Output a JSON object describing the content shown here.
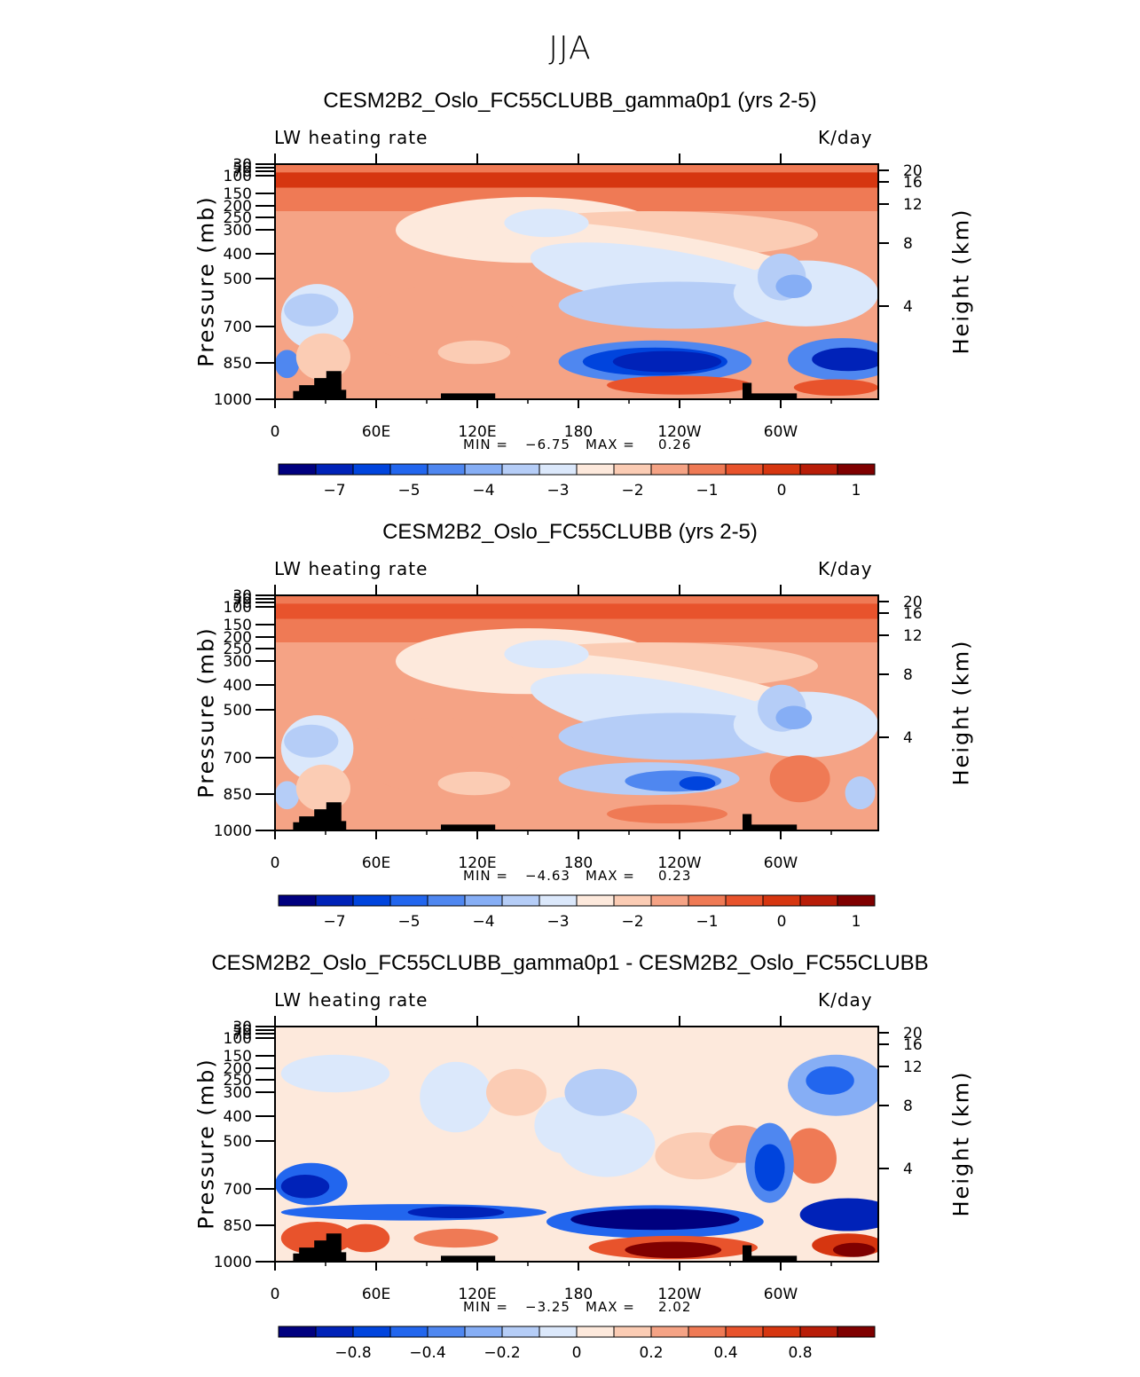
{
  "season": "JJA",
  "colors": {
    "ocean_palette": [
      "#00007f",
      "#0022b8",
      "#0044dd",
      "#2266ee",
      "#4f87f0",
      "#86aef5",
      "#b5cdf7",
      "#dbe8fb",
      "#fde9dc",
      "#fbccb4",
      "#f5a385",
      "#ef7a55",
      "#e8532c",
      "#d63610",
      "#b81d08",
      "#7f0000"
    ],
    "topography": "#000000"
  },
  "chart_data": [
    {
      "type": "heatmap",
      "title": "CESM2B2_Oslo_FC55CLUBB_gamma0p1 (yrs 2-5)",
      "variable_label": "LW heating rate",
      "units_label": "K/day",
      "ylabel": "Pressure (mb)",
      "ylabel_right": "Height (km)",
      "x_ticks": [
        "0",
        "60E",
        "120E",
        "180",
        "120W",
        "60W"
      ],
      "y_ticks": [
        "30",
        "50",
        "70",
        "100",
        "150",
        "200",
        "250",
        "300",
        "400",
        "500",
        "700",
        "850",
        "1000"
      ],
      "y_ticks_right": [
        "20",
        "16",
        "12",
        "8",
        "4"
      ],
      "min_label": "MIN =",
      "min_value": "−6.75",
      "max_label": "MAX =",
      "max_value": "0.26",
      "colorbar_labels": [
        "−7",
        "−5",
        "−4",
        "−3",
        "−2",
        "−1",
        "0",
        "1"
      ],
      "colorbar_levels": 16
    },
    {
      "type": "heatmap",
      "title": "CESM2B2_Oslo_FC55CLUBB (yrs 2-5)",
      "variable_label": "LW heating rate",
      "units_label": "K/day",
      "ylabel": "Pressure (mb)",
      "ylabel_right": "Height (km)",
      "x_ticks": [
        "0",
        "60E",
        "120E",
        "180",
        "120W",
        "60W"
      ],
      "y_ticks": [
        "30",
        "50",
        "70",
        "100",
        "150",
        "200",
        "250",
        "300",
        "400",
        "500",
        "700",
        "850",
        "1000"
      ],
      "y_ticks_right": [
        "20",
        "16",
        "12",
        "8",
        "4"
      ],
      "min_label": "MIN =",
      "min_value": "−4.63",
      "max_label": "MAX =",
      "max_value": "0.23",
      "colorbar_labels": [
        "−7",
        "−5",
        "−4",
        "−3",
        "−2",
        "−1",
        "0",
        "1"
      ],
      "colorbar_levels": 16
    },
    {
      "type": "heatmap",
      "title": "CESM2B2_Oslo_FC55CLUBB_gamma0p1 - CESM2B2_Oslo_FC55CLUBB",
      "variable_label": "LW heating rate",
      "units_label": "K/day",
      "ylabel": "Pressure (mb)",
      "ylabel_right": "Height (km)",
      "x_ticks": [
        "0",
        "60E",
        "120E",
        "180",
        "120W",
        "60W"
      ],
      "y_ticks": [
        "30",
        "50",
        "70",
        "100",
        "150",
        "200",
        "250",
        "300",
        "400",
        "500",
        "700",
        "850",
        "1000"
      ],
      "y_ticks_right": [
        "20",
        "16",
        "12",
        "8",
        "4"
      ],
      "min_label": "MIN =",
      "min_value": "−3.25",
      "max_label": "MAX =",
      "max_value": "2.02",
      "colorbar_labels": [
        "−0.8",
        "−0.4",
        "−0.2",
        "0",
        "0.2",
        "0.4",
        "0.8"
      ],
      "colorbar_levels": 16
    }
  ]
}
